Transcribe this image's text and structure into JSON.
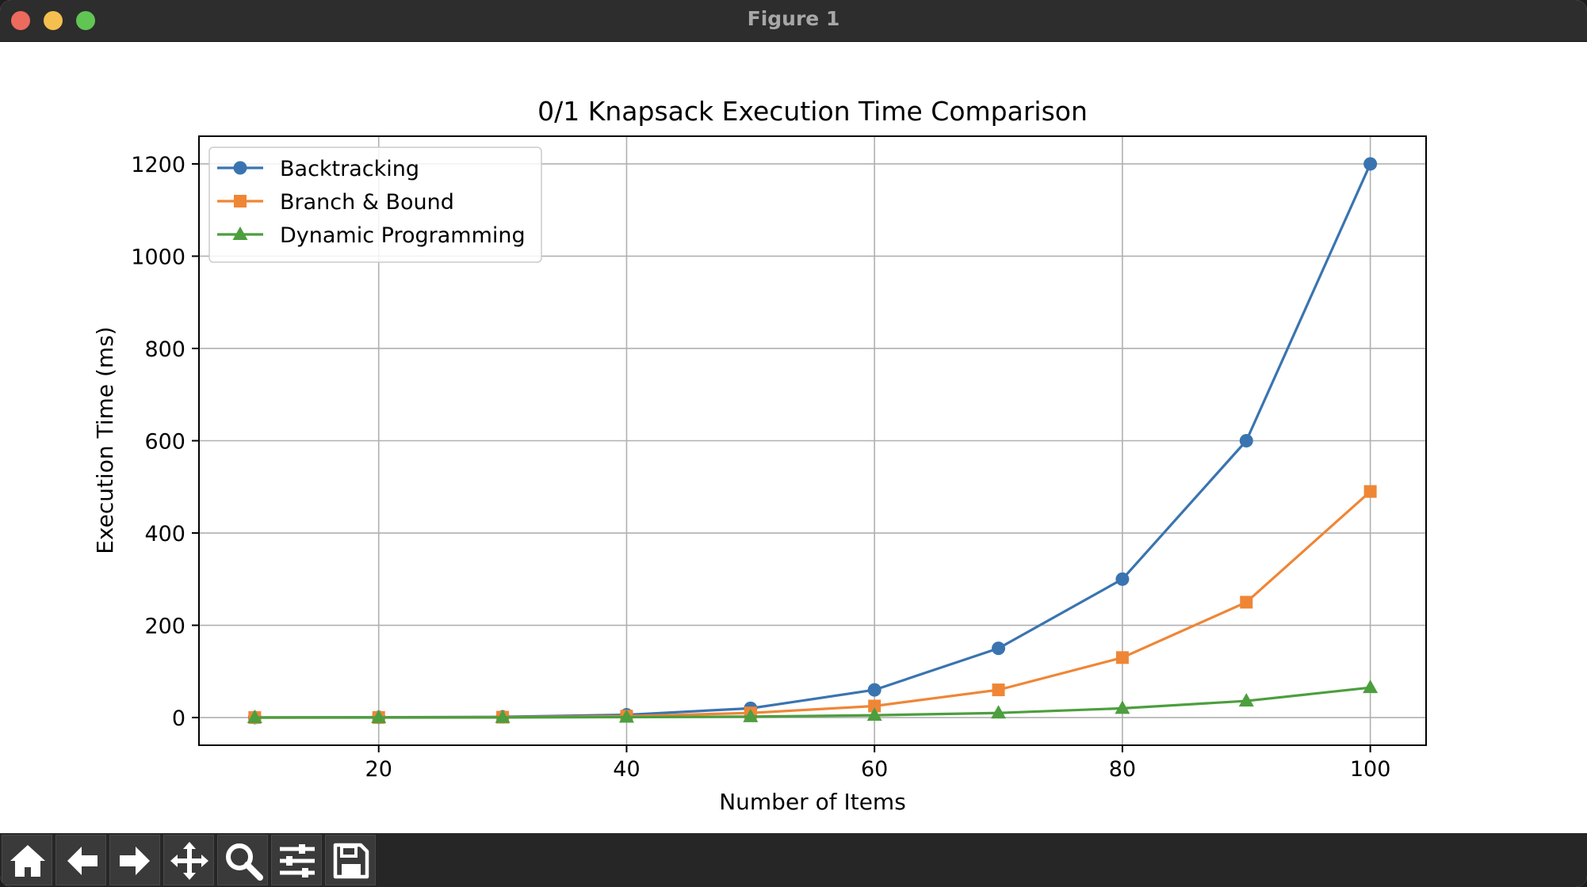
{
  "window": {
    "title": "Figure 1"
  },
  "toolbar": {
    "buttons": [
      {
        "name": "home-icon"
      },
      {
        "name": "back-arrow-icon"
      },
      {
        "name": "forward-arrow-icon"
      },
      {
        "name": "pan-move-icon"
      },
      {
        "name": "zoom-magnifier-icon"
      },
      {
        "name": "configure-subplots-icon"
      },
      {
        "name": "save-floppy-icon"
      }
    ]
  },
  "chart_data": {
    "type": "line",
    "title": "0/1 Knapsack Execution Time Comparison",
    "xlabel": "Number of Items",
    "ylabel": "Execution Time (ms)",
    "x": [
      10,
      20,
      30,
      40,
      50,
      60,
      70,
      80,
      90,
      100
    ],
    "xlim": [
      5.5,
      104.5
    ],
    "ylim": [
      -60,
      1260
    ],
    "xticks": [
      20,
      40,
      60,
      80,
      100
    ],
    "yticks": [
      0,
      200,
      400,
      600,
      800,
      1000,
      1200
    ],
    "grid": true,
    "legend_position": "top-left",
    "series": [
      {
        "name": "Backtracking",
        "color": "#3a74b0",
        "marker": "circle",
        "values": [
          0.1,
          0.5,
          1.5,
          6,
          20,
          60,
          150,
          300,
          600,
          1200
        ]
      },
      {
        "name": "Branch & Bound",
        "color": "#ef8636",
        "marker": "square",
        "values": [
          0.05,
          0.2,
          0.8,
          3,
          10,
          25,
          60,
          130,
          250,
          490
        ]
      },
      {
        "name": "Dynamic Programming",
        "color": "#4c9e3e",
        "marker": "triangle",
        "values": [
          0.02,
          0.1,
          0.3,
          1,
          2,
          5,
          10,
          20,
          36,
          65
        ]
      }
    ]
  }
}
